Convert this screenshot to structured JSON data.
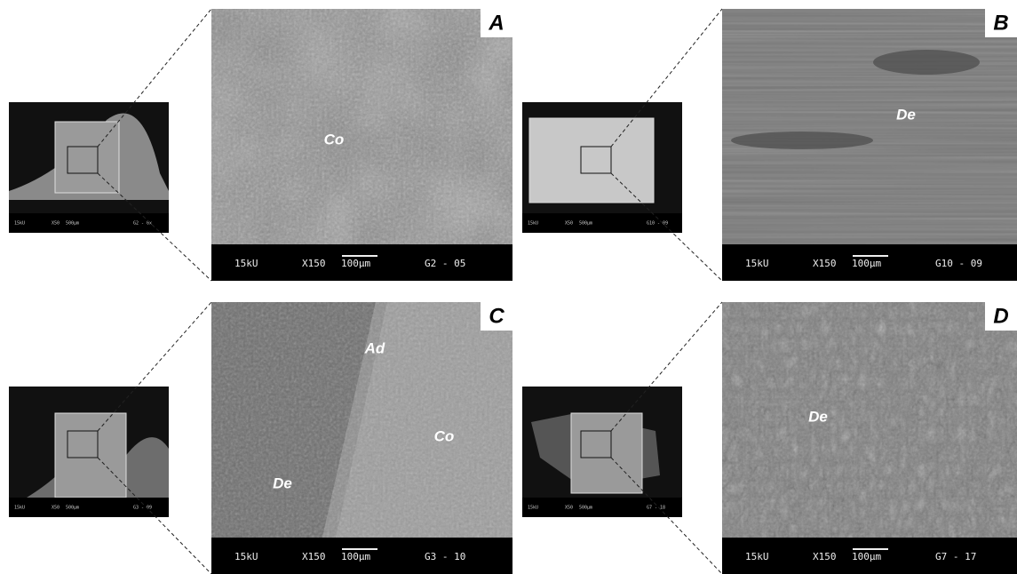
{
  "panels": [
    {
      "letter": "A",
      "labels": [
        "Co"
      ],
      "main_bar": {
        "kv": "15kU",
        "mag": "X150",
        "scale": "100µm",
        "id": "G2 - 05"
      },
      "thumb_bar": {
        "kv": "15kU",
        "mag": "X50",
        "scale": "500µm",
        "id": "G2 - 0x"
      }
    },
    {
      "letter": "B",
      "labels": [
        "De"
      ],
      "main_bar": {
        "kv": "15kU",
        "mag": "X150",
        "scale": "100µm",
        "id": "G10 - 09"
      },
      "thumb_bar": {
        "kv": "15kU",
        "mag": "X50",
        "scale": "500µm",
        "id": "G10 - 09"
      }
    },
    {
      "letter": "C",
      "labels": [
        "Ad",
        "Co",
        "De"
      ],
      "main_bar": {
        "kv": "15kU",
        "mag": "X150",
        "scale": "100µm",
        "id": "G3 - 10"
      },
      "thumb_bar": {
        "kv": "15kU",
        "mag": "X50",
        "scale": "500µm",
        "id": "G3 - 09"
      }
    },
    {
      "letter": "D",
      "labels": [
        "De"
      ],
      "main_bar": {
        "kv": "15kU",
        "mag": "X150",
        "scale": "100µm",
        "id": "G7 - 17"
      },
      "thumb_bar": {
        "kv": "15kU",
        "mag": "X50",
        "scale": "500µm",
        "id": "G7 - 18"
      }
    }
  ]
}
